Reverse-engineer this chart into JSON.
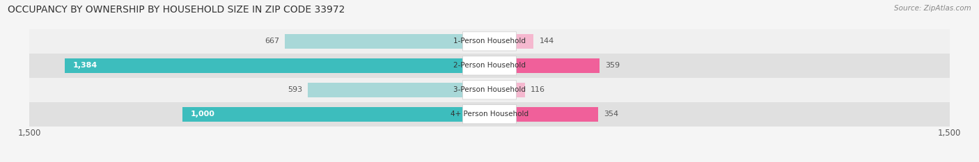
{
  "title": "OCCUPANCY BY OWNERSHIP BY HOUSEHOLD SIZE IN ZIP CODE 33972",
  "source": "Source: ZipAtlas.com",
  "categories": [
    "1-Person Household",
    "2-Person Household",
    "3-Person Household",
    "4+ Person Household"
  ],
  "owner_values": [
    667,
    1384,
    593,
    1000
  ],
  "renter_values": [
    144,
    359,
    116,
    354
  ],
  "owner_colors": [
    "#a8d8d8",
    "#3dbdbd",
    "#a8d8d8",
    "#3dbdbd"
  ],
  "renter_colors": [
    "#f5b8cf",
    "#f0609a",
    "#f5b8cf",
    "#f0609a"
  ],
  "row_bg_colors": [
    "#f0f0f0",
    "#e0e0e0",
    "#f0f0f0",
    "#e0e0e0"
  ],
  "owner_color_legend": "#4bbcbc",
  "renter_color_legend": "#f0609a",
  "xlim": 1500,
  "background_color": "#f5f5f5",
  "title_fontsize": 10,
  "tick_fontsize": 8.5,
  "bar_height": 0.6
}
